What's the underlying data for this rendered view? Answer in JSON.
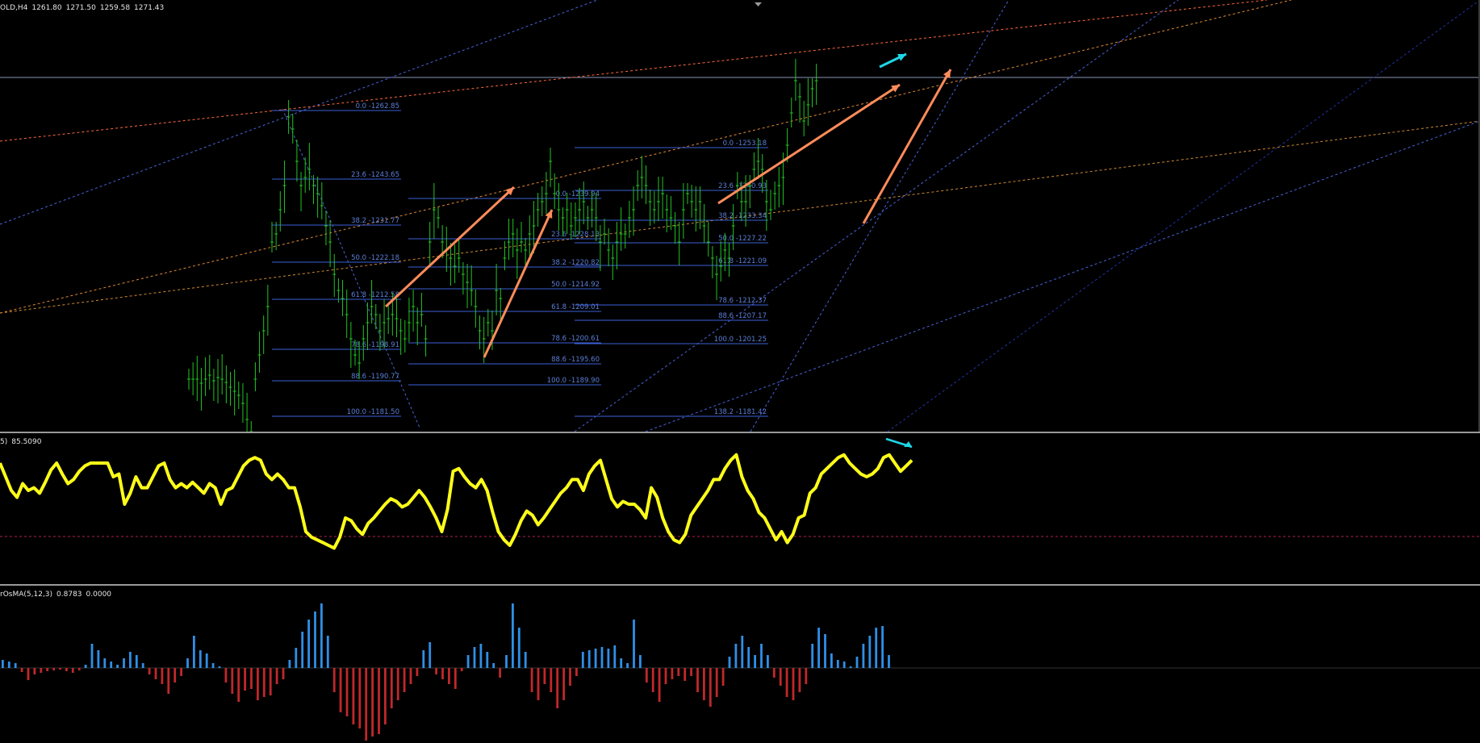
{
  "main_header": {
    "symbol": "OLD,H4",
    "open": "1261.80",
    "high": "1271.50",
    "low": "1259.58",
    "close": "1271.43"
  },
  "oscillator_header": {
    "label": "5)",
    "value": "85.5090"
  },
  "osma_header": {
    "label": "rOsMA(5,12,3)",
    "value1": "0.8783",
    "value2": "0.0000"
  },
  "colors": {
    "background": "#000000",
    "candles": "#22c322",
    "fib_levels": "#3b5fd6",
    "trend_orange": "#ff8c3a",
    "arrow_orange": "#ff8c5a",
    "arrow_cyan": "#1fd7e6",
    "oscillator": "#ffff19",
    "osma_positive": "#2f8fe6",
    "osma_negative": "#c0282a"
  },
  "fib_sets": [
    {
      "levels": [
        "0.0 -1262.85",
        "23.6 -1243.65",
        "38.2 -1231.77",
        "50.0 -1222.18",
        "61.8 -1212.58",
        "78.6 -1198.91",
        "88.6 -1190.77",
        "100.0 -1181.50"
      ]
    },
    {
      "levels": [
        "0.0 -1239.94",
        "23.6 -1228.13",
        "38.2 -1220.82",
        "50.0 -1214.92",
        "61.8 -1209.01",
        "78.6 -1200.61",
        "88.6 -1195.60",
        "100.0 -1189.90"
      ]
    },
    {
      "levels": [
        "0.0 -1253.18",
        "23.6 -1240.93",
        "38.2 -1233.34",
        "50.0 -1227.22",
        "61.8 -1221.09",
        "78.6 -1212.37",
        "88.6 -1207.17",
        "100.0 -1201.25",
        "138.2 -1181.42"
      ]
    }
  ],
  "oscillator_series": [
    80,
    70,
    60,
    55,
    65,
    60,
    62,
    58,
    66,
    75,
    80,
    72,
    65,
    68,
    74,
    78,
    80,
    80,
    80,
    80,
    70,
    72,
    50,
    58,
    70,
    62,
    62,
    70,
    78,
    80,
    68,
    62,
    65,
    62,
    66,
    62,
    58,
    65,
    62,
    50,
    60,
    62,
    70,
    78,
    82,
    84,
    82,
    72,
    68,
    72,
    68,
    62,
    62,
    48,
    30,
    26,
    24,
    22,
    20,
    18,
    26,
    40,
    38,
    32,
    28,
    36,
    40,
    45,
    50,
    54,
    52,
    48,
    50,
    55,
    60,
    55,
    48,
    40,
    30,
    46,
    74,
    76,
    70,
    65,
    62,
    68,
    60,
    44,
    30,
    24,
    20,
    28,
    38,
    45,
    42,
    35,
    40,
    46,
    52,
    58,
    62,
    68,
    68,
    60,
    72,
    78,
    82,
    68,
    54,
    48,
    52,
    50,
    50,
    46,
    40,
    62,
    55,
    40,
    30,
    24,
    22,
    28,
    42,
    48,
    54,
    60,
    68,
    68,
    76,
    82,
    86,
    70,
    60,
    54,
    44,
    40,
    32,
    24,
    30,
    22,
    28,
    40,
    42,
    58,
    62,
    72,
    76,
    80,
    84,
    86,
    80,
    76,
    72,
    70,
    72,
    76,
    84,
    86,
    80,
    74,
    78,
    82
  ]
}
